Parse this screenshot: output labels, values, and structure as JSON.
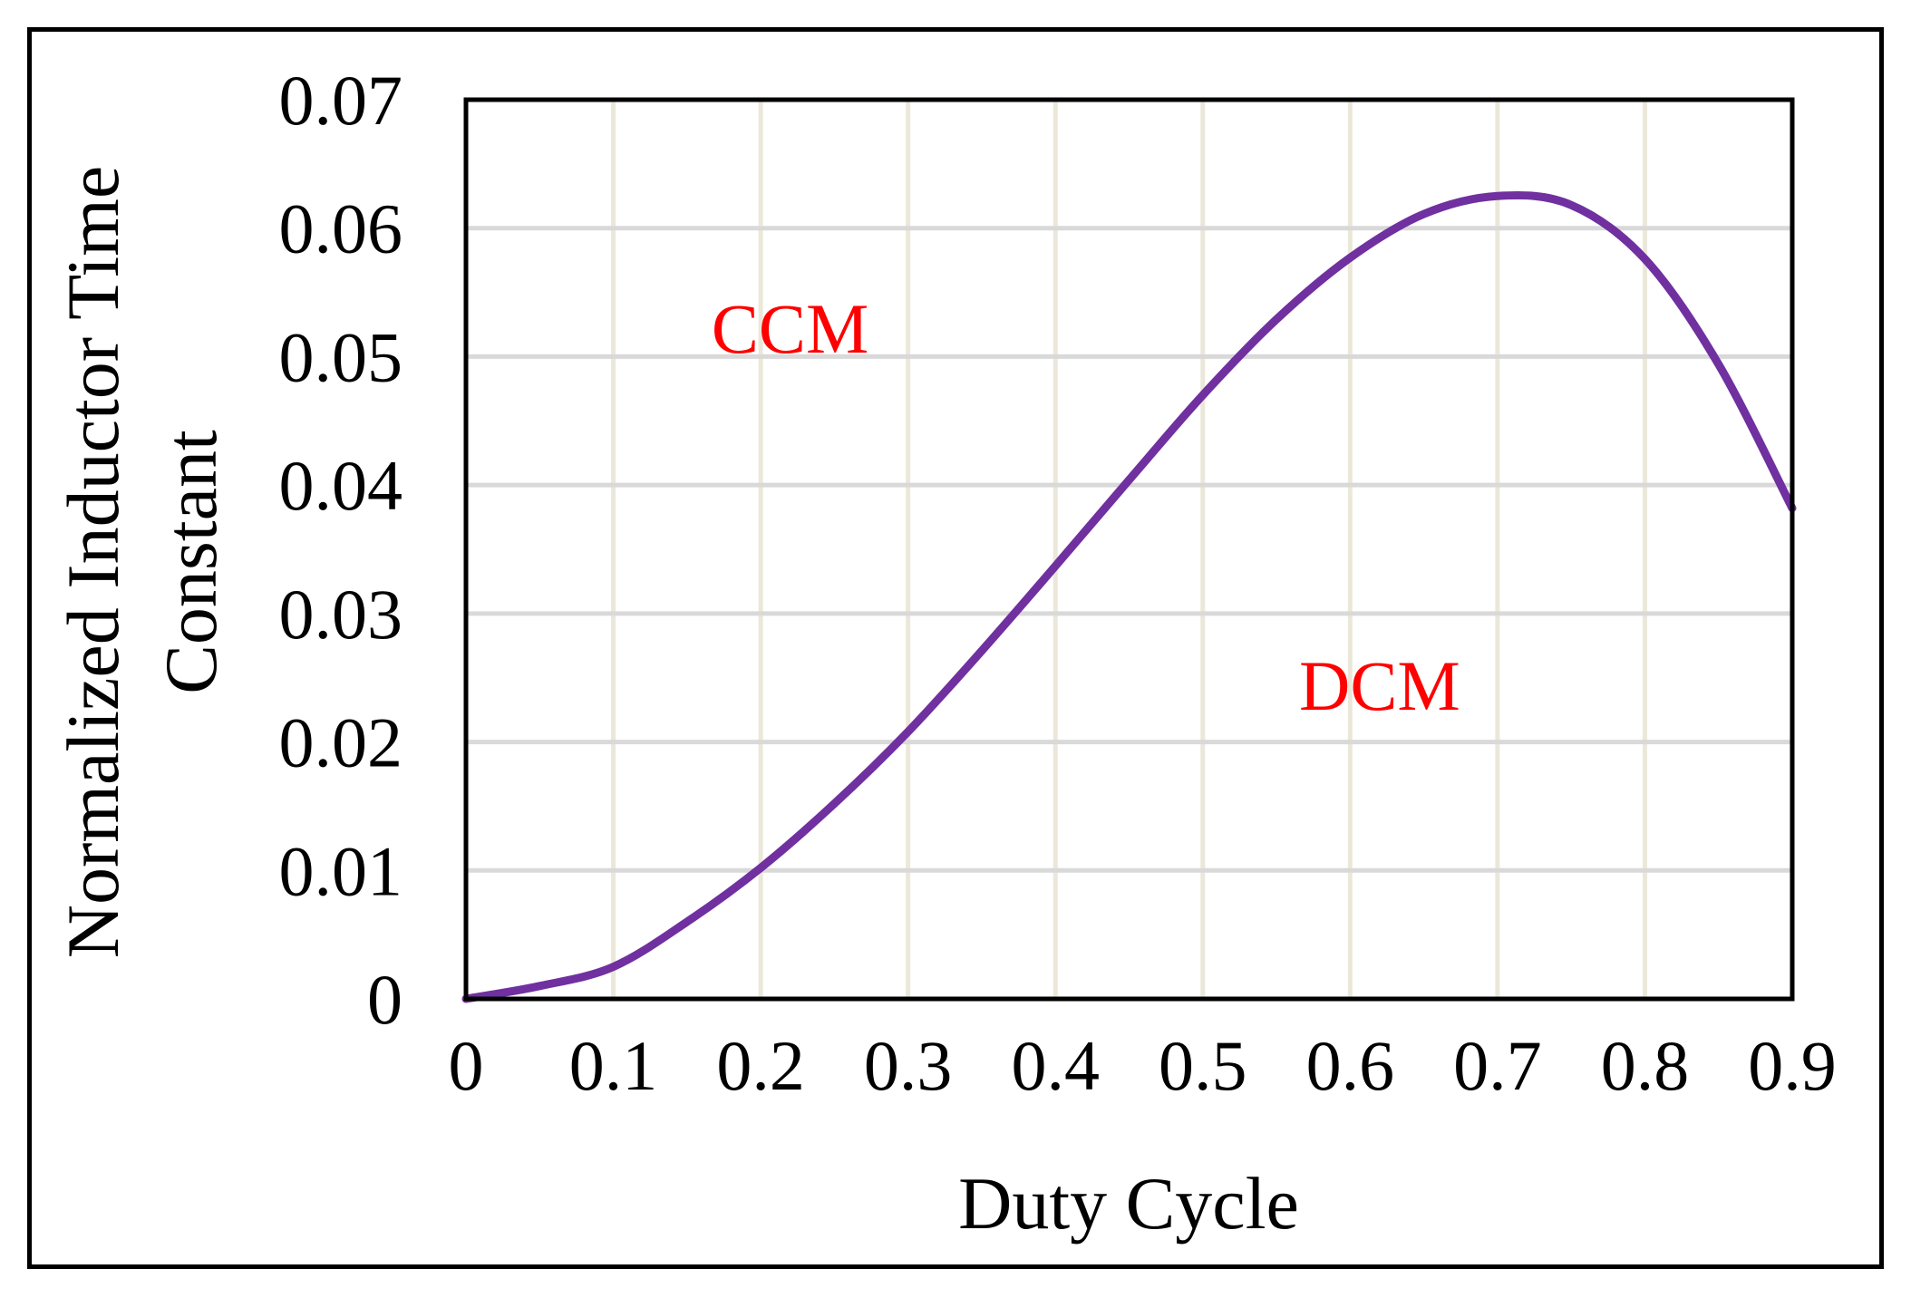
{
  "chart_data": {
    "type": "line",
    "title": "",
    "xlabel": "Duty Cycle",
    "ylabel_line1": "Normalized Inductor Time",
    "ylabel_line2": "Constant",
    "xlim": [
      0,
      0.9
    ],
    "ylim": [
      0,
      0.07
    ],
    "x_ticks": [
      "0",
      "0.1",
      "0.2",
      "0.3",
      "0.4",
      "0.5",
      "0.6",
      "0.7",
      "0.8",
      "0.9"
    ],
    "y_ticks": [
      "0",
      "0.01",
      "0.02",
      "0.03",
      "0.04",
      "0.05",
      "0.06",
      "0.07"
    ],
    "grid": true,
    "series": [
      {
        "name": "Normalized Inductor Time Constant",
        "color": "#7030a0",
        "x": [
          0,
          0.05,
          0.1,
          0.15,
          0.2,
          0.25,
          0.3,
          0.35,
          0.4,
          0.45,
          0.5,
          0.55,
          0.6,
          0.65,
          0.7,
          0.75,
          0.8,
          0.85,
          0.9
        ],
        "y": [
          0,
          0.001,
          0.0025,
          0.006,
          0.0102,
          0.0152,
          0.0208,
          0.0271,
          0.0337,
          0.0404,
          0.047,
          0.0529,
          0.0577,
          0.0611,
          0.0625,
          0.0618,
          0.0576,
          0.0494,
          0.0382
        ]
      }
    ],
    "annotations": [
      {
        "text": "CCM",
        "x": 0.22,
        "y": 0.0503,
        "color": "#ff0000"
      },
      {
        "text": "DCM",
        "x": 0.62,
        "y": 0.0225,
        "color": "#ff0000"
      }
    ],
    "colors": {
      "grid": "#d9d9d9",
      "gridline_vertical": "#ebe8da",
      "axis": "#000000",
      "text": "#000000"
    }
  }
}
